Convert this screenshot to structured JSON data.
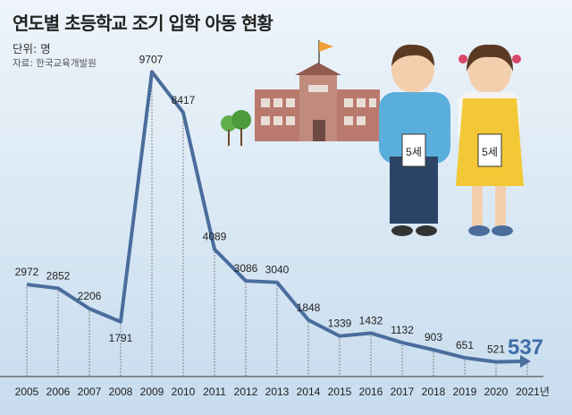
{
  "title": "연도별 초등학교 조기 입학 아동 현황",
  "unit": "단위: 명",
  "source": "자료: 한국교육개발원",
  "badge_left": "5세",
  "badge_right": "5세",
  "chart_data": {
    "type": "line",
    "title": "연도별 초등학교 조기 입학 아동 현황",
    "xlabel": "",
    "ylabel": "명",
    "categories": [
      "2005",
      "2006",
      "2007",
      "2008",
      "2009",
      "2010",
      "2011",
      "2012",
      "2013",
      "2014",
      "2015",
      "2016",
      "2017",
      "2018",
      "2019",
      "2020",
      "2021년"
    ],
    "values": [
      2972,
      2852,
      2206,
      1791,
      9707,
      8417,
      4089,
      3086,
      3040,
      1848,
      1339,
      1432,
      1132,
      903,
      651,
      521,
      537
    ],
    "highlight_index": 16,
    "ylim": [
      0,
      10000
    ],
    "grid": false,
    "line_color": "#4a6d9c",
    "highlight_color": "#3e6ea8"
  }
}
